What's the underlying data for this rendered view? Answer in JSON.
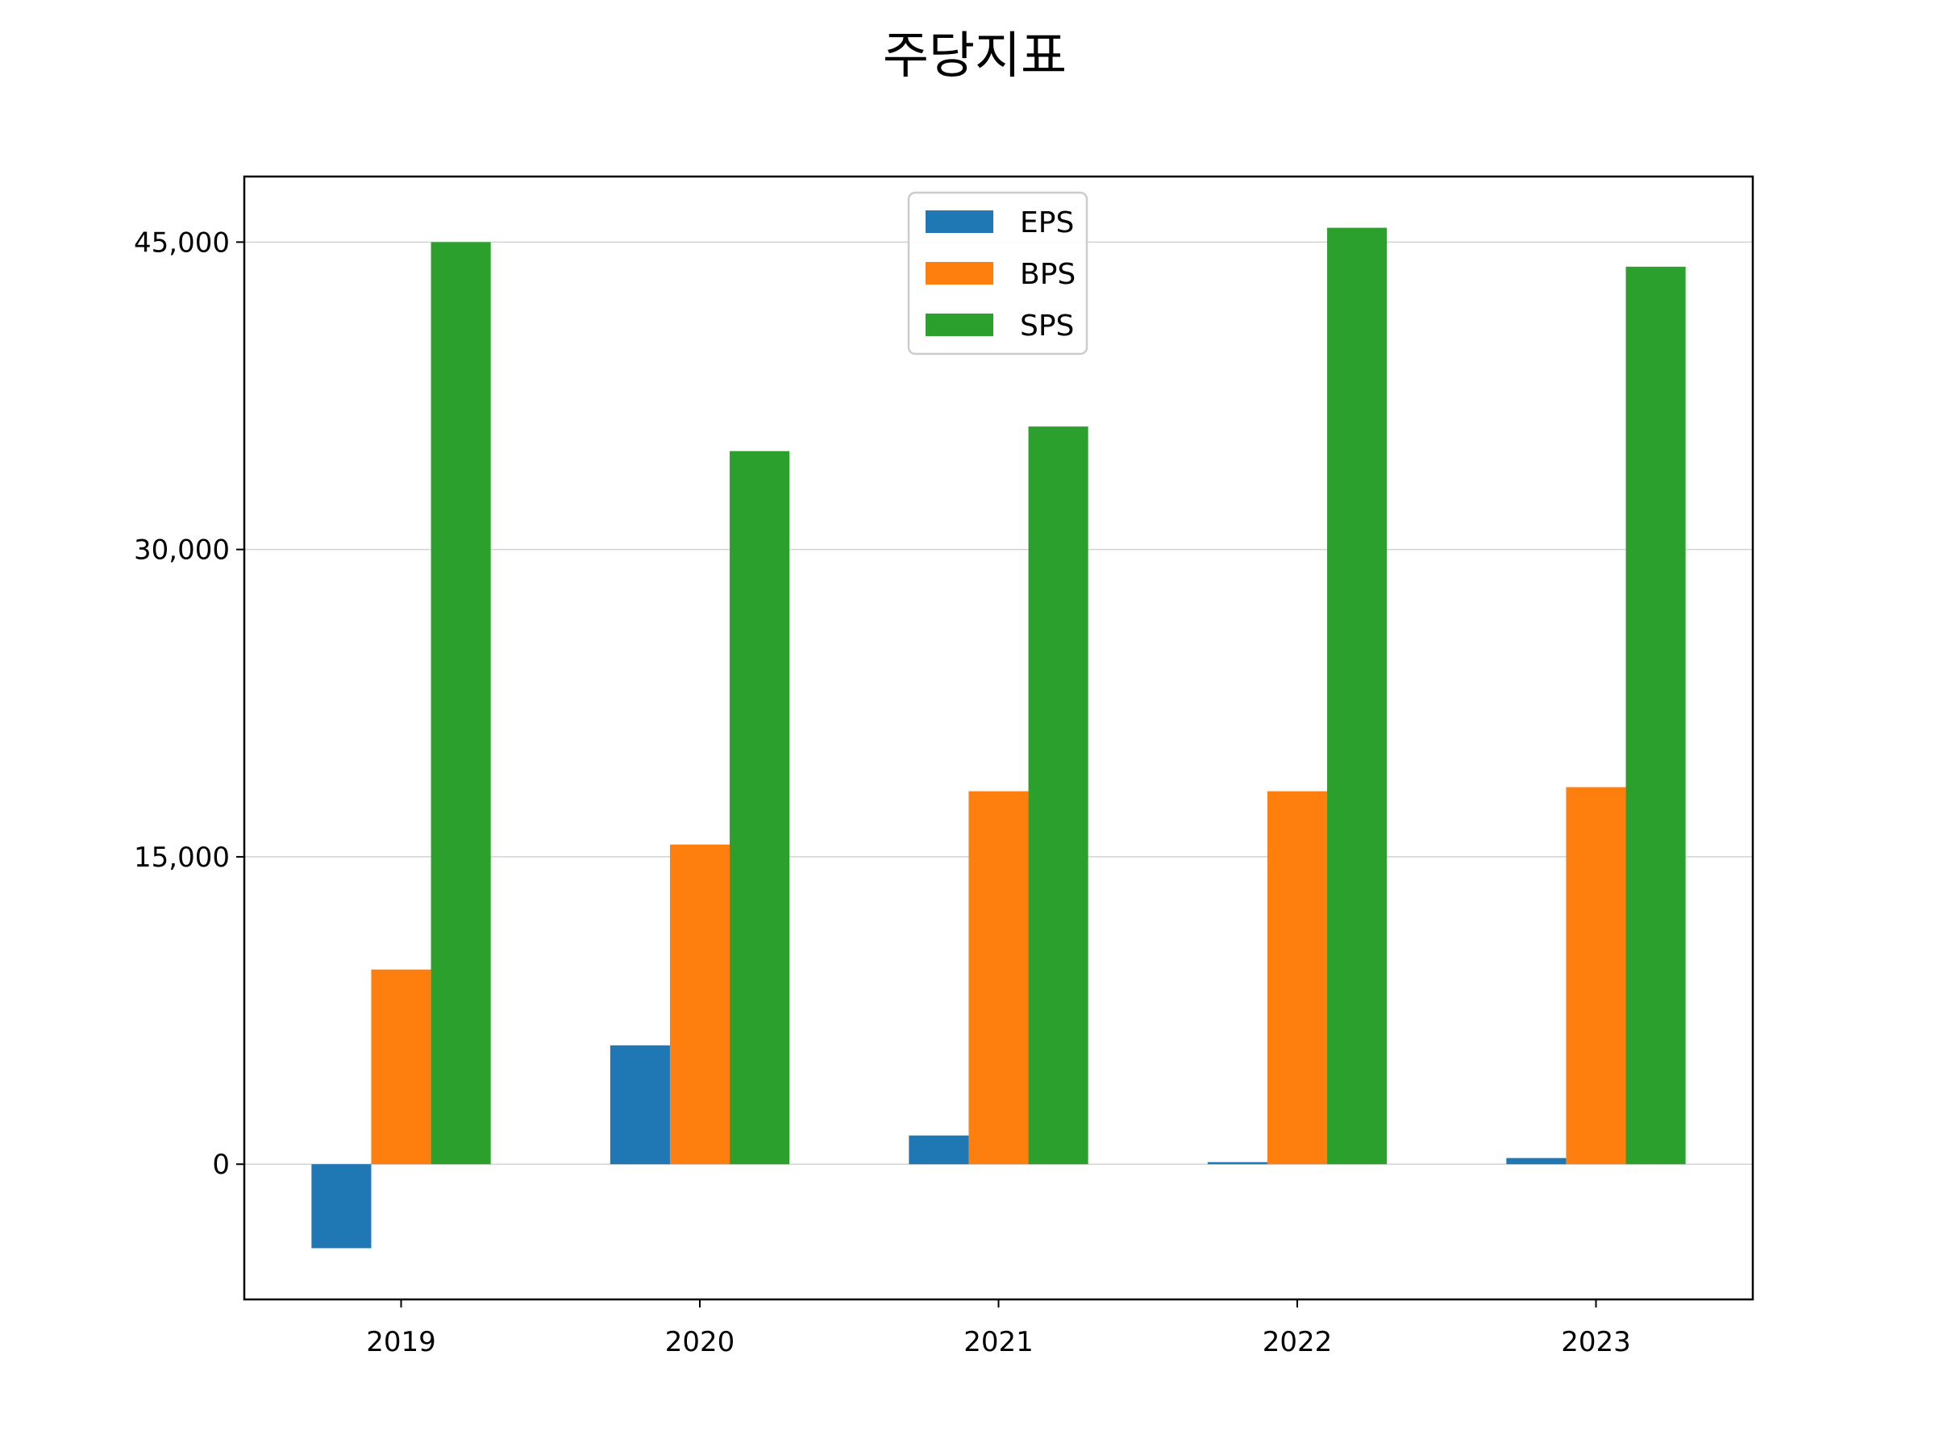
{
  "chart_data": {
    "type": "bar",
    "title": "주당지표",
    "xlabel": "",
    "ylabel": "",
    "categories": [
      "2019",
      "2020",
      "2021",
      "2022",
      "2023"
    ],
    "series": [
      {
        "name": "EPS",
        "color": "#1f77b4",
        "values": [
          -4100,
          5800,
          1400,
          100,
          300
        ]
      },
      {
        "name": "BPS",
        "color": "#ff7f0e",
        "values": [
          9500,
          15600,
          18200,
          18200,
          18400
        ]
      },
      {
        "name": "SPS",
        "color": "#2ca02c",
        "values": [
          45000,
          34800,
          36000,
          45700,
          43800
        ]
      }
    ],
    "ylim": [
      -6600,
      48200
    ],
    "yticks": [
      0,
      15000,
      30000,
      45000
    ],
    "ytick_labels": [
      "0",
      "15,000",
      "30,000",
      "45,000"
    ],
    "grid": {
      "y": true,
      "x": false,
      "color": "#d3d3d3"
    },
    "legend": {
      "placement": "top-center"
    }
  }
}
